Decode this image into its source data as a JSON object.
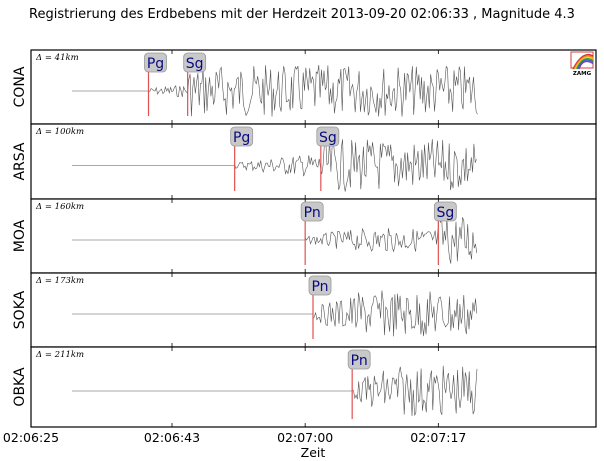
{
  "title": "Registrierung des Erdbebens mit der Herdzeit 2013-09-20 02:06:33 , Magnitude 4.3",
  "logo": {
    "text": "ZAMG",
    "icon": "zamg-rainbow-logo-icon"
  },
  "chart_data": {
    "type": "line",
    "title": "Registrierung des Erdbebens mit der Herdzeit 2013-09-20 02:06:33 , Magnitude 4.3",
    "xlabel": "Zeit",
    "ylabel": "",
    "x_ticks": [
      "02:06:25",
      "02:06:43",
      "02:07:00",
      "02:07:17"
    ],
    "x_range": [
      "02:06:25",
      "02:07:25"
    ],
    "grid": false,
    "legend": null,
    "series": [
      {
        "name": "CONA",
        "distance": "Δ = 41km",
        "distance_km": 41,
        "picks": [
          {
            "phase": "Pg",
            "time": "02:06:40"
          },
          {
            "phase": "Sg",
            "time": "02:06:45"
          }
        ],
        "signal_start": "02:06:40",
        "signal_end": "02:07:22"
      },
      {
        "name": "ARSA",
        "distance": "Δ = 100km",
        "distance_km": 100,
        "picks": [
          {
            "phase": "Pg",
            "time": "02:06:51"
          },
          {
            "phase": "Sg",
            "time": "02:07:02"
          }
        ],
        "signal_start": "02:06:51",
        "signal_end": "02:07:22"
      },
      {
        "name": "MOA",
        "distance": "Δ = 160km",
        "distance_km": 160,
        "picks": [
          {
            "phase": "Pn",
            "time": "02:07:00"
          },
          {
            "phase": "Sg",
            "time": "02:07:17"
          }
        ],
        "signal_start": "02:07:00",
        "signal_end": "02:07:22"
      },
      {
        "name": "SOKA",
        "distance": "Δ = 173km",
        "distance_km": 173,
        "picks": [
          {
            "phase": "Pn",
            "time": "02:07:01"
          }
        ],
        "signal_start": "02:07:01",
        "signal_end": "02:07:22"
      },
      {
        "name": "OBKA",
        "distance": "Δ = 211km",
        "distance_km": 211,
        "picks": [
          {
            "phase": "Pn",
            "time": "02:07:06"
          }
        ],
        "signal_start": "02:07:06",
        "signal_end": "02:07:22"
      }
    ]
  },
  "colors": {
    "trace": "#555555",
    "pick_line": "#e05050",
    "pick_box": "#c8c8c8",
    "pick_text": "#0a0a80",
    "frame": "#000000"
  }
}
